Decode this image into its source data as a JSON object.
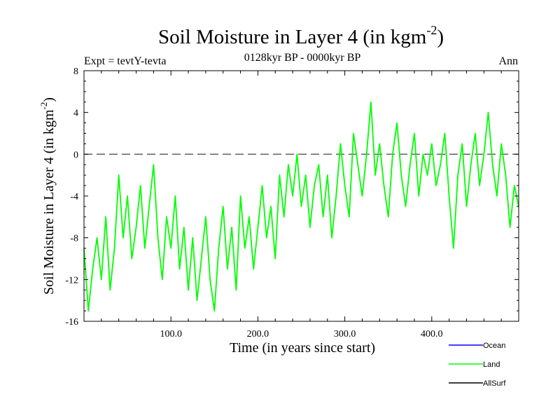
{
  "chart_data": {
    "type": "line",
    "title": "Soil Moisture in Layer 4 (in kgm",
    "title_superscript": "-2",
    "title_close": ")",
    "subtitle": "0128kyr BP - 0000kyr BP",
    "experiment_label": "Expt = tevtY-tevta",
    "season_label": "Ann",
    "xlabel": "Time (in years since start)",
    "ylabel": "Soil Moisture in Layer 4 (in kgm",
    "ylabel_superscript": "-2",
    "ylabel_close": ")",
    "xlim": [
      0,
      500
    ],
    "ylim": [
      -16,
      8
    ],
    "x_ticks": [
      100,
      200,
      300,
      400
    ],
    "x_tick_labels": [
      "100.0",
      "200.0",
      "300.0",
      "400.0"
    ],
    "y_ticks": [
      8,
      4,
      0,
      -4,
      -8,
      -12,
      -16
    ],
    "y_tick_labels": [
      "8",
      "4",
      "0",
      "-4",
      "-8",
      "-12",
      "-16"
    ],
    "reference_line": {
      "y": 0,
      "style": "dashed",
      "color": "#555555"
    },
    "legend": [
      {
        "name": "Ocean",
        "color": "#0000ff"
      },
      {
        "name": "Land",
        "color": "#00ff00"
      },
      {
        "name": "AllSurf",
        "color": "#000000"
      }
    ],
    "series": [
      {
        "name": "Land",
        "color": "#00ff00",
        "x": [
          0,
          5,
          10,
          15,
          20,
          25,
          30,
          35,
          40,
          45,
          50,
          55,
          60,
          65,
          70,
          75,
          80,
          85,
          90,
          95,
          100,
          105,
          110,
          115,
          120,
          125,
          130,
          135,
          140,
          145,
          150,
          155,
          160,
          165,
          170,
          175,
          180,
          185,
          190,
          195,
          200,
          205,
          210,
          215,
          220,
          225,
          230,
          235,
          240,
          245,
          250,
          255,
          260,
          265,
          270,
          275,
          280,
          285,
          290,
          295,
          300,
          305,
          310,
          315,
          320,
          325,
          330,
          335,
          340,
          345,
          350,
          355,
          360,
          365,
          370,
          375,
          380,
          385,
          390,
          395,
          400,
          405,
          410,
          415,
          420,
          425,
          430,
          435,
          440,
          445,
          450,
          455,
          460,
          465,
          470,
          475,
          480,
          485,
          490,
          495,
          500
        ],
        "values": [
          -9,
          -15,
          -11,
          -8,
          -12,
          -6,
          -13,
          -9,
          -2,
          -8,
          -4,
          -10,
          -7,
          -3,
          -9,
          -5,
          -1,
          -8,
          -12,
          -6,
          -9,
          -4,
          -11,
          -7,
          -13,
          -8,
          -14,
          -10,
          -6,
          -12,
          -15,
          -9,
          -5,
          -11,
          -7,
          -13,
          -4,
          -9,
          -6,
          -11,
          -7,
          -3,
          -8,
          -5,
          -10,
          -2,
          -6,
          -1,
          -4,
          0,
          -5,
          -2,
          -7,
          -3,
          -1,
          -6,
          -2,
          -8,
          -4,
          1,
          -3,
          -6,
          2,
          -1,
          -4,
          0,
          5,
          -2,
          1,
          -3,
          -6,
          0,
          3,
          -2,
          -5,
          -1,
          2,
          -4,
          0,
          -2,
          1,
          -3,
          -1,
          2,
          -4,
          -9,
          -2,
          1,
          -5,
          -1,
          2,
          -3,
          0,
          4,
          -1,
          -4,
          1,
          -2,
          -7,
          -3,
          -5
        ]
      }
    ]
  }
}
